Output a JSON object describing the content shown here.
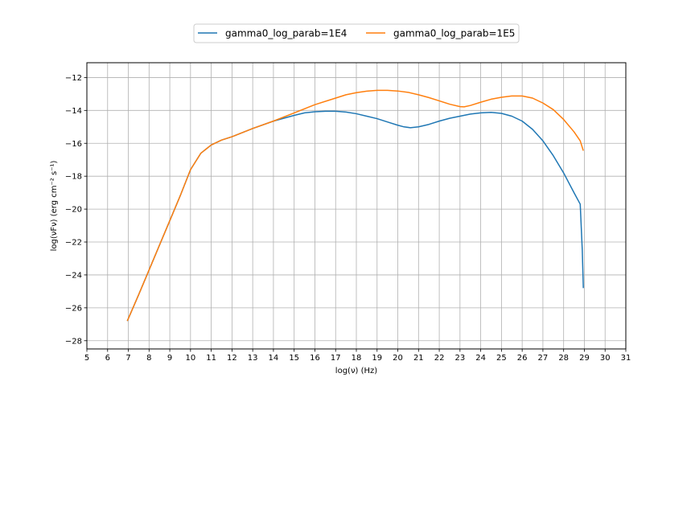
{
  "chart_data": {
    "type": "line",
    "xlabel": "log(ν)  (Hz)",
    "ylabel": "log(νFν)  (erg cm⁻²  s⁻¹)",
    "xlim": [
      5,
      31
    ],
    "ylim": [
      -28.5,
      -11.1
    ],
    "x_ticks": [
      "5",
      "6",
      "7",
      "8",
      "9",
      "10",
      "11",
      "12",
      "13",
      "14",
      "15",
      "16",
      "17",
      "18",
      "19",
      "20",
      "21",
      "22",
      "23",
      "24",
      "25",
      "26",
      "27",
      "28",
      "29",
      "30",
      "31"
    ],
    "y_ticks": [
      "-12",
      "-14",
      "-16",
      "-18",
      "-20",
      "-22",
      "-24",
      "-26",
      "-28"
    ],
    "grid": true,
    "legend_position": "top-center",
    "series": [
      {
        "name": "gamma0_log_parab=1E4",
        "color": "#1f77b4",
        "x": [
          6.95,
          7.5,
          8.0,
          8.5,
          9.0,
          9.5,
          10.0,
          10.5,
          11.0,
          11.5,
          12.0,
          13.0,
          14.0,
          15.0,
          15.5,
          16.0,
          16.5,
          17.0,
          17.5,
          18.0,
          18.5,
          19.0,
          19.5,
          20.0,
          20.3,
          20.6,
          21.0,
          21.5,
          22.0,
          22.5,
          23.0,
          23.5,
          24.0,
          24.5,
          25.0,
          25.5,
          26.0,
          26.5,
          27.0,
          27.5,
          28.0,
          28.5,
          28.8,
          28.9,
          28.95
        ],
        "y": [
          -26.8,
          -25.2,
          -23.7,
          -22.2,
          -20.7,
          -19.2,
          -17.6,
          -16.6,
          -16.1,
          -15.8,
          -15.6,
          -15.1,
          -14.65,
          -14.3,
          -14.15,
          -14.08,
          -14.05,
          -14.05,
          -14.1,
          -14.2,
          -14.35,
          -14.5,
          -14.7,
          -14.9,
          -15.0,
          -15.05,
          -15.0,
          -14.85,
          -14.65,
          -14.48,
          -14.35,
          -14.22,
          -14.15,
          -14.12,
          -14.18,
          -14.35,
          -14.65,
          -15.15,
          -15.85,
          -16.75,
          -17.8,
          -19.0,
          -19.7,
          -22.5,
          -24.8
        ]
      },
      {
        "name": "gamma0_log_parab=1E5",
        "color": "#ff7f0e",
        "x": [
          6.95,
          7.5,
          8.0,
          8.5,
          9.0,
          9.5,
          10.0,
          10.5,
          11.0,
          11.5,
          12.0,
          13.0,
          14.0,
          15.0,
          16.0,
          17.0,
          17.5,
          18.0,
          18.5,
          19.0,
          19.5,
          20.0,
          20.5,
          21.0,
          21.5,
          22.0,
          22.5,
          23.0,
          23.2,
          23.5,
          24.0,
          24.5,
          25.0,
          25.5,
          26.0,
          26.5,
          27.0,
          27.5,
          28.0,
          28.5,
          28.8,
          28.95
        ],
        "y": [
          -26.8,
          -25.2,
          -23.7,
          -22.2,
          -20.7,
          -19.2,
          -17.6,
          -16.6,
          -16.1,
          -15.8,
          -15.6,
          -15.1,
          -14.65,
          -14.15,
          -13.65,
          -13.25,
          -13.05,
          -12.92,
          -12.83,
          -12.78,
          -12.78,
          -12.82,
          -12.9,
          -13.05,
          -13.22,
          -13.42,
          -13.62,
          -13.77,
          -13.78,
          -13.7,
          -13.5,
          -13.32,
          -13.2,
          -13.12,
          -13.12,
          -13.25,
          -13.55,
          -13.95,
          -14.55,
          -15.3,
          -15.85,
          -16.45
        ]
      }
    ]
  }
}
